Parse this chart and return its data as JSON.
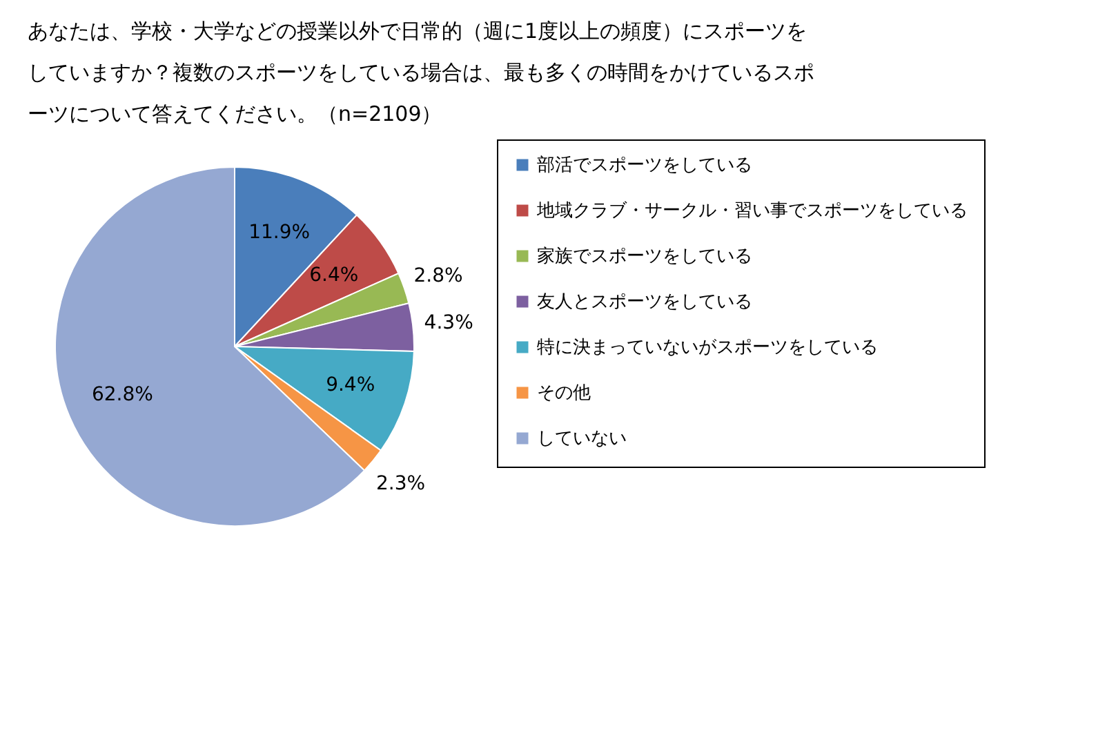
{
  "chart_data": {
    "type": "pie",
    "title": "あなたは、学校・大学などの授業以外で日常的（週に1度以上の頻度）にスポーツをしていますか？複数のスポーツをしている場合は、最も多くの時間をかけているスポーツについて答えてください。（n=2109）",
    "categories": [
      "部活でスポーツをしている",
      "地域クラブ・サークル・習い事でスポーツをしている",
      "家族でスポーツをしている",
      "友人とスポーツをしている",
      "特に決まっていないがスポーツをしている",
      "その他",
      "していない"
    ],
    "values": [
      11.9,
      6.4,
      2.8,
      4.3,
      9.4,
      2.3,
      62.8
    ],
    "value_labels": [
      "11.9%",
      "6.4%",
      "2.8%",
      "4.3%",
      "9.4%",
      "2.3%",
      "62.8%"
    ],
    "colors": [
      "#4a7ebb",
      "#be4b48",
      "#98b954",
      "#7d60a0",
      "#46aac5",
      "#f69545",
      "#95a8d2"
    ],
    "legend": "right"
  }
}
